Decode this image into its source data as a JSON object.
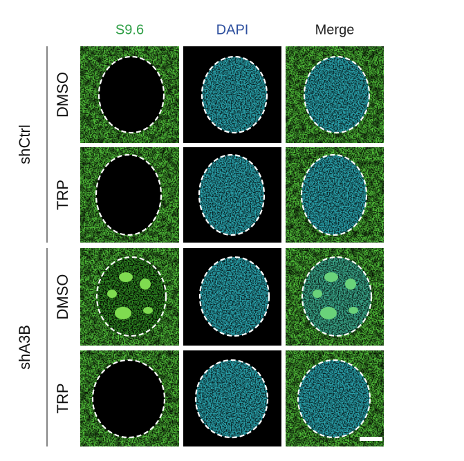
{
  "columns": [
    {
      "label": "S9.6",
      "color": "#2e9e45"
    },
    {
      "label": "DAPI",
      "color": "#2d4f9e"
    },
    {
      "label": "Merge",
      "color": "#222222"
    }
  ],
  "groups": [
    {
      "label": "shCtrl",
      "rows": [
        {
          "label": "DMSO"
        },
        {
          "label": "TRP"
        }
      ]
    },
    {
      "label": "shA3B",
      "rows": [
        {
          "label": "DMSO"
        },
        {
          "label": "TRP"
        }
      ]
    }
  ]
}
